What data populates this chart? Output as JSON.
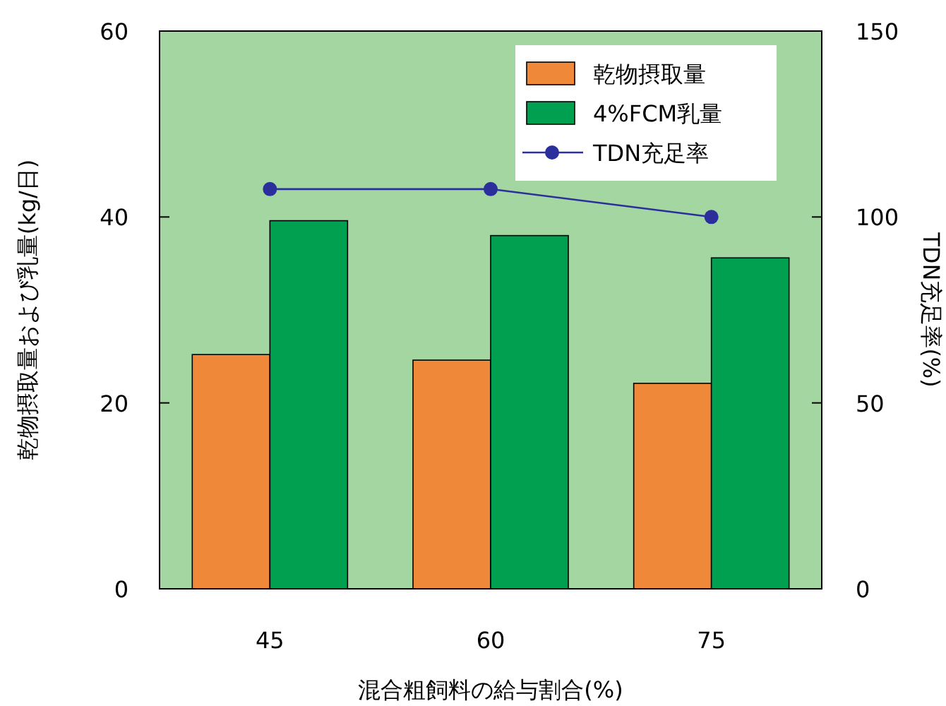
{
  "chart_data": {
    "type": "bar",
    "xlabel": "混合粗飼料の給与割合(%)",
    "ylabel": "乾物摂取量および乳量(kg/日)",
    "y2label": "TDN充足率(%)",
    "categories": [
      "45",
      "60",
      "75"
    ],
    "series": [
      {
        "name": "乾物摂取量",
        "color": "#f0883a",
        "values": [
          25.2,
          24.6,
          22.1
        ]
      },
      {
        "name": "4%FCM乳量",
        "color": "#00a050",
        "values": [
          39.6,
          38.0,
          35.6
        ]
      },
      {
        "name": "TDN充足率",
        "type": "line",
        "axis": "y2",
        "color": "#2b2f9b",
        "marker": "circle",
        "values": [
          107.5,
          107.5,
          100
        ]
      }
    ],
    "ylim": [
      0,
      60
    ],
    "yticks": [
      0,
      20,
      40,
      60
    ],
    "y2lim": [
      0,
      150
    ],
    "y2ticks": [
      0,
      50,
      100,
      150
    ],
    "legend": "top right",
    "grid": false
  }
}
